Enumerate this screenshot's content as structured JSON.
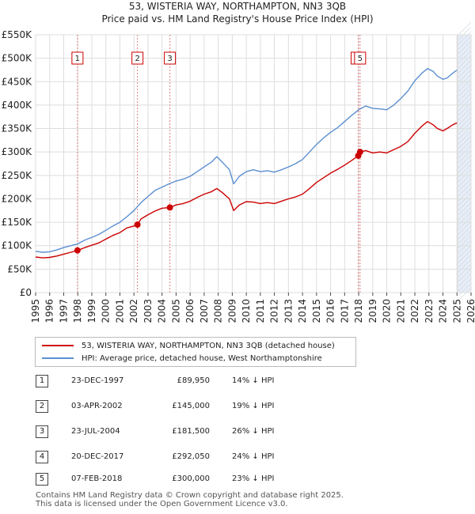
{
  "title_line1": "53, WISTERIA WAY, NORTHAMPTON, NN3 3QB",
  "title_line2": "Price paid vs. HM Land Registry's House Price Index (HPI)",
  "colors": {
    "property": "#cc0000",
    "hpi": "#5b8fd1",
    "marker_line": "#e08080",
    "grid": "#dddddd",
    "shade": "#e8eef7"
  },
  "chart_data": {
    "type": "line",
    "xlim": [
      1995,
      2026
    ],
    "ylim": [
      0,
      550000
    ],
    "y_ticks": [
      0,
      50000,
      100000,
      150000,
      200000,
      250000,
      300000,
      350000,
      400000,
      450000,
      500000,
      550000
    ],
    "y_tick_labels": [
      "£0",
      "£50K",
      "£100K",
      "£150K",
      "£200K",
      "£250K",
      "£300K",
      "£350K",
      "£400K",
      "£450K",
      "£500K",
      "£550K"
    ],
    "x_ticks": [
      1995,
      1996,
      1997,
      1998,
      1999,
      2000,
      2001,
      2002,
      2003,
      2004,
      2005,
      2006,
      2007,
      2008,
      2009,
      2010,
      2011,
      2012,
      2013,
      2014,
      2015,
      2016,
      2017,
      2018,
      2019,
      2020,
      2021,
      2022,
      2023,
      2024,
      2025,
      2026
    ],
    "x_tick_labels": [
      "1995",
      "1996",
      "1997",
      "1998",
      "1999",
      "2000",
      "2001",
      "2002",
      "2003",
      "2004",
      "2005",
      "2006",
      "2007",
      "2008",
      "2009",
      "2010",
      "2011",
      "2012",
      "2013",
      "2014",
      "2015",
      "2016",
      "2017",
      "2018",
      "2019",
      "2020",
      "2021",
      "2022",
      "2023",
      "2024",
      "2025",
      "2026"
    ],
    "forecast_start": 2025.1,
    "series": [
      {
        "name": "53, WISTERIA WAY, NORTHAMPTON, NN3 3QB (detached house)",
        "x": [
          1995.0,
          1995.5,
          1996.0,
          1996.5,
          1997.0,
          1997.5,
          1997.98,
          1998.5,
          1999.0,
          1999.5,
          2000.0,
          2000.5,
          2001.0,
          2001.5,
          2002.0,
          2002.25,
          2002.5,
          2003.0,
          2003.5,
          2004.0,
          2004.56,
          2005.0,
          2005.5,
          2006.0,
          2006.5,
          2007.0,
          2007.5,
          2007.9,
          2008.3,
          2008.8,
          2009.1,
          2009.5,
          2010.0,
          2010.5,
          2011.0,
          2011.5,
          2012.0,
          2012.5,
          2013.0,
          2013.5,
          2014.0,
          2014.5,
          2015.0,
          2015.5,
          2016.0,
          2016.5,
          2017.0,
          2017.5,
          2017.97,
          2018.1,
          2018.5,
          2019.0,
          2019.5,
          2020.0,
          2020.5,
          2021.0,
          2021.5,
          2022.0,
          2022.5,
          2022.9,
          2023.3,
          2023.6,
          2024.0,
          2024.3,
          2024.7,
          2025.0
        ],
        "y": [
          76000,
          74000,
          75000,
          78000,
          82000,
          86000,
          89950,
          96000,
          101000,
          106000,
          114000,
          122000,
          128000,
          138000,
          142000,
          145000,
          157000,
          166000,
          174000,
          180000,
          181500,
          187000,
          190000,
          195000,
          203000,
          210000,
          215000,
          222000,
          213000,
          200000,
          175000,
          187000,
          194000,
          193000,
          190000,
          192000,
          190000,
          195000,
          200000,
          204000,
          210000,
          222000,
          235000,
          245000,
          255000,
          263000,
          272000,
          282000,
          292050,
          300000,
          303000,
          298000,
          300000,
          298000,
          305000,
          312000,
          322000,
          340000,
          355000,
          365000,
          358000,
          350000,
          345000,
          350000,
          358000,
          362000
        ]
      },
      {
        "name": "HPI: Average price, detached house, West Northamptonshire",
        "x": [
          1995.0,
          1995.5,
          1996.0,
          1996.5,
          1997.0,
          1997.5,
          1998.0,
          1998.5,
          1999.0,
          1999.5,
          2000.0,
          2000.5,
          2001.0,
          2001.5,
          2002.0,
          2002.5,
          2003.0,
          2003.5,
          2004.0,
          2004.5,
          2005.0,
          2005.5,
          2006.0,
          2006.5,
          2007.0,
          2007.5,
          2007.9,
          2008.3,
          2008.8,
          2009.1,
          2009.5,
          2010.0,
          2010.5,
          2011.0,
          2011.5,
          2012.0,
          2012.5,
          2013.0,
          2013.5,
          2014.0,
          2014.5,
          2015.0,
          2015.5,
          2016.0,
          2016.5,
          2017.0,
          2017.5,
          2018.0,
          2018.5,
          2019.0,
          2019.5,
          2020.0,
          2020.5,
          2021.0,
          2021.5,
          2022.0,
          2022.5,
          2022.9,
          2023.3,
          2023.6,
          2024.0,
          2024.3,
          2024.7,
          2025.0
        ],
        "y": [
          88000,
          86000,
          87000,
          91000,
          96000,
          100000,
          104000,
          112000,
          118000,
          124000,
          133000,
          142000,
          150000,
          162000,
          175000,
          192000,
          205000,
          218000,
          225000,
          232000,
          238000,
          242000,
          248000,
          258000,
          268000,
          278000,
          290000,
          278000,
          262000,
          232000,
          248000,
          258000,
          262000,
          258000,
          260000,
          257000,
          262000,
          268000,
          275000,
          284000,
          300000,
          316000,
          330000,
          342000,
          352000,
          365000,
          378000,
          390000,
          398000,
          393000,
          392000,
          390000,
          400000,
          414000,
          430000,
          452000,
          468000,
          478000,
          472000,
          462000,
          455000,
          458000,
          468000,
          475000
        ]
      }
    ],
    "sales": [
      {
        "label": "1",
        "date": "23-DEC-1997",
        "x": 1997.98,
        "price": 89950,
        "price_label": "£89,950",
        "hpi_diff": "14% ↓ HPI"
      },
      {
        "label": "2",
        "date": "03-APR-2002",
        "x": 2002.25,
        "price": 145000,
        "price_label": "£145,000",
        "hpi_diff": "19% ↓ HPI"
      },
      {
        "label": "3",
        "date": "23-JUL-2004",
        "x": 2004.56,
        "price": 181500,
        "price_label": "£181,500",
        "hpi_diff": "26% ↓ HPI"
      },
      {
        "label": "4",
        "date": "20-DEC-2017",
        "x": 2017.97,
        "price": 292050,
        "price_label": "£292,050",
        "hpi_diff": "24% ↓ HPI"
      },
      {
        "label": "5",
        "date": "07-FEB-2018",
        "x": 2018.1,
        "price": 300000,
        "price_label": "£300,000",
        "hpi_diff": "23% ↓ HPI"
      }
    ]
  },
  "legend": {
    "property_label": "53, WISTERIA WAY, NORTHAMPTON, NN3 3QB (detached house)",
    "hpi_label": "HPI: Average price, detached house, West Northamptonshire"
  },
  "footer": {
    "line1": "Contains HM Land Registry data © Crown copyright and database right 2025.",
    "line2": "This data is licensed under the Open Government Licence v3.0."
  }
}
